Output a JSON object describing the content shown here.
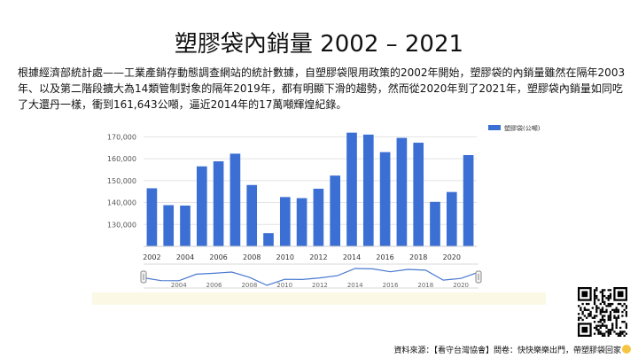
{
  "title": "塑膠袋內銷量 2002 – 2021",
  "description": "根據經濟部統計處——工業產銷存動態調查網站的統計數據，自塑膠袋限用政策的2002年開始，塑膠袋的內銷量雖然在隔年2003年、以及第二階段擴大為14類管制對象的隔年2019年，都有明顯下滑的趨勢，然而從2020年到了2021年，塑膠袋內銷量如同吃了大還丹一樣，衝到161,643公噸，逼近2014年的17萬噸輝煌紀錄。",
  "source": "資料來源：【看守台灣協會】問卷：快快樂樂出門，帶塑膠袋回家",
  "colors": {
    "bar": "#3b6fd4",
    "navigator_line": "#4a78d0",
    "navigator_bg": "#fbf9e6"
  },
  "chart_data": {
    "type": "bar",
    "categories": [
      "2002",
      "2003",
      "2004",
      "2005",
      "2006",
      "2007",
      "2008",
      "2009",
      "2010",
      "2011",
      "2012",
      "2013",
      "2014",
      "2015",
      "2016",
      "2017",
      "2018",
      "2019",
      "2020",
      "2021"
    ],
    "series": [
      {
        "name": "塑膠袋(公噸)",
        "values": [
          146500,
          138800,
          138600,
          156500,
          158800,
          162300,
          148000,
          126000,
          142500,
          142000,
          146300,
          152300,
          171900,
          171000,
          163000,
          169500,
          167300,
          140300,
          144800,
          161643
        ]
      }
    ],
    "y_ticks": [
      "130,000",
      "140,000",
      "150,000",
      "160,000",
      "170,000"
    ],
    "y_tick_values": [
      130000,
      140000,
      150000,
      160000,
      170000
    ],
    "ylim": [
      120000,
      175000
    ],
    "x_ticks": [
      "2002",
      "2004",
      "2006",
      "2008",
      "2010",
      "2012",
      "2014",
      "2016",
      "2018",
      "2020"
    ],
    "navigator_ticks": [
      "2004",
      "2006",
      "2008",
      "2010",
      "2012",
      "2014",
      "2016",
      "2018",
      "2020"
    ],
    "legend": "top-right",
    "grid": true
  }
}
